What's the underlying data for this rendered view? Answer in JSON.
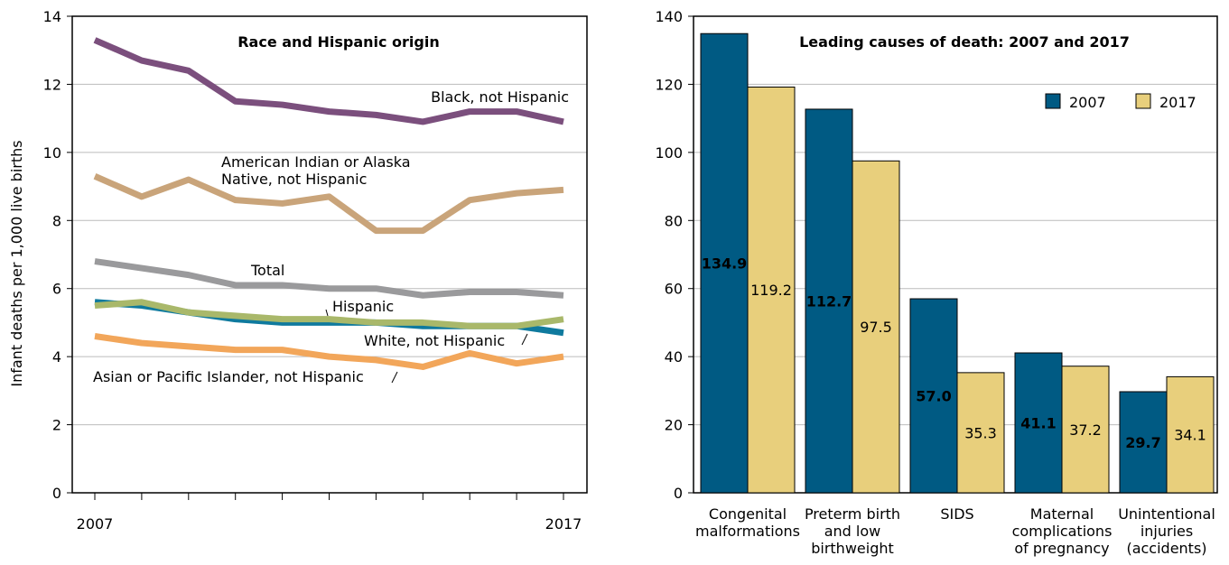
{
  "chart_data": [
    {
      "type": "line",
      "title": "Race and Hispanic origin",
      "y_label": "Infant deaths per 1,000 live births",
      "x": [
        2007,
        2008,
        2009,
        2010,
        2011,
        2012,
        2013,
        2014,
        2015,
        2016,
        2017
      ],
      "xlim": [
        2007,
        2017
      ],
      "xticks": [
        2007,
        2017
      ],
      "ylim": [
        0,
        14
      ],
      "yticks": [
        0,
        2,
        4,
        6,
        8,
        10,
        12,
        14
      ],
      "grid": true,
      "series": [
        {
          "name": "Black, not Hispanic",
          "color": "#7b4f7d",
          "values": [
            13.3,
            12.7,
            12.4,
            11.5,
            11.4,
            11.2,
            11.1,
            10.9,
            11.2,
            11.2,
            10.9
          ]
        },
        {
          "name": "American Indian or Alaska Native, not Hispanic",
          "color": "#c9a47a",
          "values": [
            9.3,
            8.7,
            9.2,
            8.6,
            8.5,
            8.7,
            7.7,
            7.7,
            8.6,
            8.8,
            8.9
          ]
        },
        {
          "name": "Total",
          "color": "#9a9a9c",
          "values": [
            6.8,
            6.6,
            6.4,
            6.1,
            6.1,
            6.0,
            6.0,
            5.8,
            5.9,
            5.9,
            5.8
          ]
        },
        {
          "name": "White, not Hispanic",
          "color": "#0f7a9e",
          "values": [
            5.6,
            5.5,
            5.3,
            5.1,
            5.0,
            5.0,
            5.0,
            4.9,
            4.9,
            4.9,
            4.7
          ]
        },
        {
          "name": "Hispanic",
          "color": "#a9b86a",
          "values": [
            5.5,
            5.6,
            5.3,
            5.2,
            5.1,
            5.1,
            5.0,
            5.0,
            4.9,
            4.9,
            5.1
          ]
        },
        {
          "name": "Asian or Pacific Islander, not Hispanic",
          "color": "#f2a65a",
          "values": [
            4.6,
            4.4,
            4.3,
            4.2,
            4.2,
            4.0,
            3.9,
            3.7,
            4.1,
            3.8,
            4.0
          ]
        }
      ]
    },
    {
      "type": "bar",
      "title": "Leading causes of death: 2007 and 2017",
      "categories": [
        "Congenital malformations",
        "Preterm birth and low birthweight",
        "SIDS",
        "Maternal complications of pregnancy",
        "Unintentional injuries (accidents)"
      ],
      "ylim": [
        0,
        140
      ],
      "yticks": [
        0,
        20,
        40,
        60,
        80,
        100,
        120,
        140
      ],
      "grid": true,
      "legend": "upper right",
      "series": [
        {
          "name": "2007",
          "color": "#005a83",
          "values": [
            134.9,
            112.7,
            57,
            41.1,
            29.7
          ],
          "value_labels": [
            "134.9",
            "112.7",
            "57.0",
            "41.1",
            "29.7"
          ]
        },
        {
          "name": "2017",
          "color": "#e8cf7c",
          "values": [
            119.2,
            97.5,
            35.3,
            37.2,
            34.1
          ],
          "value_labels": [
            "119.2",
            "97.5",
            "35.3",
            "37.2",
            "34.1"
          ]
        }
      ]
    }
  ]
}
